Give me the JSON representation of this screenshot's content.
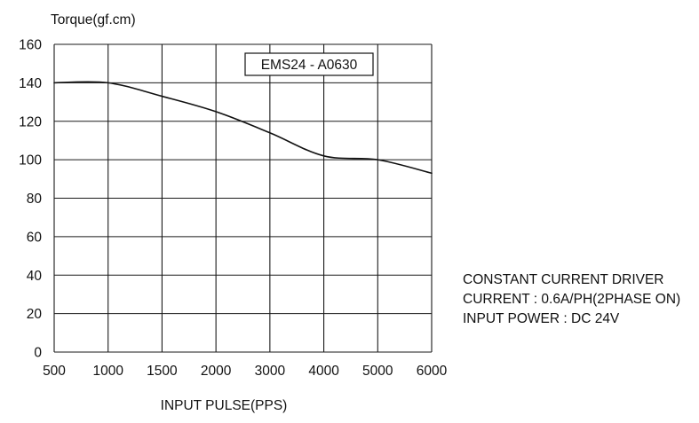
{
  "chart_data": {
    "type": "line",
    "ylabel": "Torque(gf.cm)",
    "xlabel": "INPUT PULSE(PPS)",
    "model_label": "EMS24 - A0630",
    "x_categories": [
      "500",
      "1000",
      "1500",
      "2000",
      "3000",
      "4000",
      "5000",
      "6000"
    ],
    "ylim": [
      0,
      160
    ],
    "y_ticks": [
      0,
      20,
      40,
      60,
      80,
      100,
      120,
      140,
      160
    ],
    "grid": true,
    "series": [
      {
        "color": "#111111",
        "points": [
          {
            "x": "500",
            "y": 140
          },
          {
            "x": "1000",
            "y": 140
          },
          {
            "x": "1500",
            "y": 133
          },
          {
            "x": "2000",
            "y": 125
          },
          {
            "x": "3000",
            "y": 114
          },
          {
            "x": "4000",
            "y": 102
          },
          {
            "x": "5000",
            "y": 100
          },
          {
            "x": "6000",
            "y": 93
          }
        ]
      }
    ]
  },
  "notes": {
    "line1": "CONSTANT CURRENT DRIVER",
    "line2": "CURRENT : 0.6A/PH(2PHASE ON)",
    "line3": "INPUT POWER : DC 24V"
  },
  "colors": {
    "grid": "#1a1a1a",
    "curve": "#111111"
  }
}
